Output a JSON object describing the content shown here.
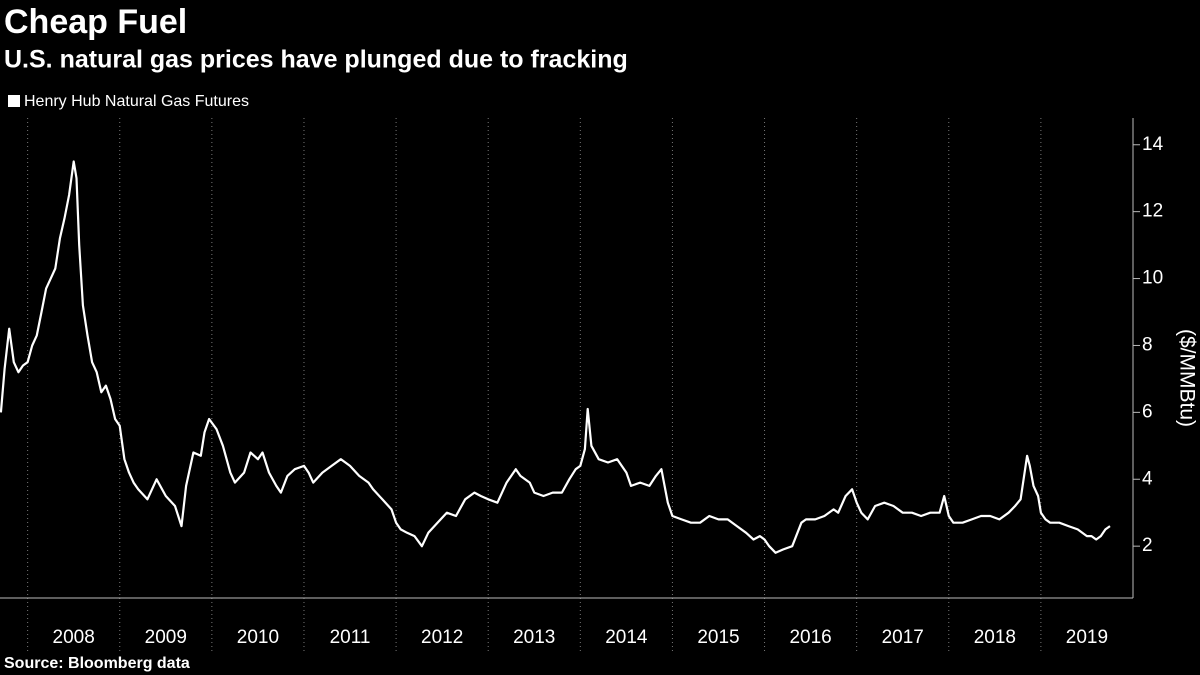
{
  "chart_data": {
    "type": "line",
    "title": "Cheap Fuel",
    "subtitle": "U.S. natural gas prices have plunged due to fracking",
    "y_label": "($/MMBtu)",
    "source": "Source: Bloomberg data",
    "xlim": [
      2007.7,
      2020
    ],
    "xticks": [
      2008,
      2009,
      2010,
      2011,
      2012,
      2013,
      2014,
      2015,
      2016,
      2017,
      2018,
      2019
    ],
    "ylim": [
      0.45,
      14.8
    ],
    "yticks": [
      2,
      4,
      6,
      8,
      10,
      12,
      14
    ],
    "legend": "top-left",
    "series": [
      {
        "name": "Henry Hub Natural Gas Futures",
        "color": "#ffffff",
        "x": [
          2007.71,
          2007.75,
          2007.8,
          2007.85,
          2007.9,
          2007.95,
          2008.0,
          2008.05,
          2008.1,
          2008.15,
          2008.2,
          2008.25,
          2008.3,
          2008.35,
          2008.4,
          2008.45,
          2008.5,
          2008.53,
          2008.56,
          2008.6,
          2008.65,
          2008.7,
          2008.75,
          2008.8,
          2008.85,
          2008.9,
          2008.95,
          2009.0,
          2009.05,
          2009.1,
          2009.15,
          2009.2,
          2009.3,
          2009.4,
          2009.5,
          2009.6,
          2009.67,
          2009.72,
          2009.8,
          2009.88,
          2009.92,
          2009.97,
          2010.05,
          2010.12,
          2010.2,
          2010.25,
          2010.35,
          2010.42,
          2010.5,
          2010.55,
          2010.62,
          2010.7,
          2010.75,
          2010.82,
          2010.9,
          2011.0,
          2011.05,
          2011.1,
          2011.2,
          2011.3,
          2011.4,
          2011.45,
          2011.5,
          2011.6,
          2011.7,
          2011.75,
          2011.85,
          2011.95,
          2012.0,
          2012.05,
          2012.12,
          2012.2,
          2012.28,
          2012.35,
          2012.45,
          2012.55,
          2012.65,
          2012.75,
          2012.85,
          2012.92,
          2013.0,
          2013.1,
          2013.2,
          2013.3,
          2013.35,
          2013.45,
          2013.5,
          2013.6,
          2013.7,
          2013.8,
          2013.88,
          2013.95,
          2014.0,
          2014.05,
          2014.08,
          2014.12,
          2014.2,
          2014.3,
          2014.4,
          2014.5,
          2014.55,
          2014.65,
          2014.75,
          2014.82,
          2014.88,
          2014.95,
          2015.0,
          2015.1,
          2015.2,
          2015.3,
          2015.4,
          2015.5,
          2015.6,
          2015.7,
          2015.8,
          2015.88,
          2015.95,
          2016.0,
          2016.05,
          2016.12,
          2016.2,
          2016.3,
          2016.4,
          2016.45,
          2016.55,
          2016.65,
          2016.75,
          2016.8,
          2016.88,
          2016.95,
          2017.0,
          2017.05,
          2017.12,
          2017.2,
          2017.3,
          2017.4,
          2017.5,
          2017.6,
          2017.7,
          2017.8,
          2017.9,
          2017.95,
          2018.0,
          2018.05,
          2018.15,
          2018.25,
          2018.35,
          2018.45,
          2018.55,
          2018.65,
          2018.72,
          2018.78,
          2018.85,
          2018.88,
          2018.92,
          2018.97,
          2019.0,
          2019.05,
          2019.1,
          2019.2,
          2019.3,
          2019.4,
          2019.5,
          2019.55,
          2019.6,
          2019.65,
          2019.7,
          2019.75
        ],
        "values": [
          6.0,
          7.3,
          8.5,
          7.5,
          7.2,
          7.4,
          7.5,
          8.0,
          8.3,
          9.0,
          9.7,
          10.0,
          10.3,
          11.2,
          11.8,
          12.5,
          13.5,
          13.0,
          11.0,
          9.2,
          8.3,
          7.5,
          7.2,
          6.6,
          6.8,
          6.4,
          5.8,
          5.6,
          4.6,
          4.2,
          3.9,
          3.7,
          3.4,
          4.0,
          3.5,
          3.2,
          2.6,
          3.8,
          4.8,
          4.7,
          5.4,
          5.8,
          5.5,
          5.0,
          4.2,
          3.9,
          4.2,
          4.8,
          4.6,
          4.8,
          4.2,
          3.8,
          3.6,
          4.1,
          4.3,
          4.4,
          4.2,
          3.9,
          4.2,
          4.4,
          4.6,
          4.5,
          4.4,
          4.1,
          3.9,
          3.7,
          3.4,
          3.1,
          2.7,
          2.5,
          2.4,
          2.3,
          2.0,
          2.4,
          2.7,
          3.0,
          2.9,
          3.4,
          3.6,
          3.5,
          3.4,
          3.3,
          3.9,
          4.3,
          4.1,
          3.9,
          3.6,
          3.5,
          3.6,
          3.6,
          4.0,
          4.3,
          4.4,
          4.9,
          6.1,
          5.0,
          4.6,
          4.5,
          4.6,
          4.2,
          3.8,
          3.9,
          3.8,
          4.1,
          4.3,
          3.3,
          2.9,
          2.8,
          2.7,
          2.7,
          2.9,
          2.8,
          2.8,
          2.6,
          2.4,
          2.2,
          2.3,
          2.2,
          2.0,
          1.8,
          1.9,
          2.0,
          2.7,
          2.8,
          2.8,
          2.9,
          3.1,
          3.0,
          3.5,
          3.7,
          3.3,
          3.0,
          2.8,
          3.2,
          3.3,
          3.2,
          3.0,
          3.0,
          2.9,
          3.0,
          3.0,
          3.5,
          2.9,
          2.7,
          2.7,
          2.8,
          2.9,
          2.9,
          2.8,
          3.0,
          3.2,
          3.4,
          4.7,
          4.4,
          3.8,
          3.5,
          3.0,
          2.8,
          2.7,
          2.7,
          2.6,
          2.5,
          2.3,
          2.3,
          2.2,
          2.3,
          2.5,
          2.6
        ]
      }
    ]
  }
}
